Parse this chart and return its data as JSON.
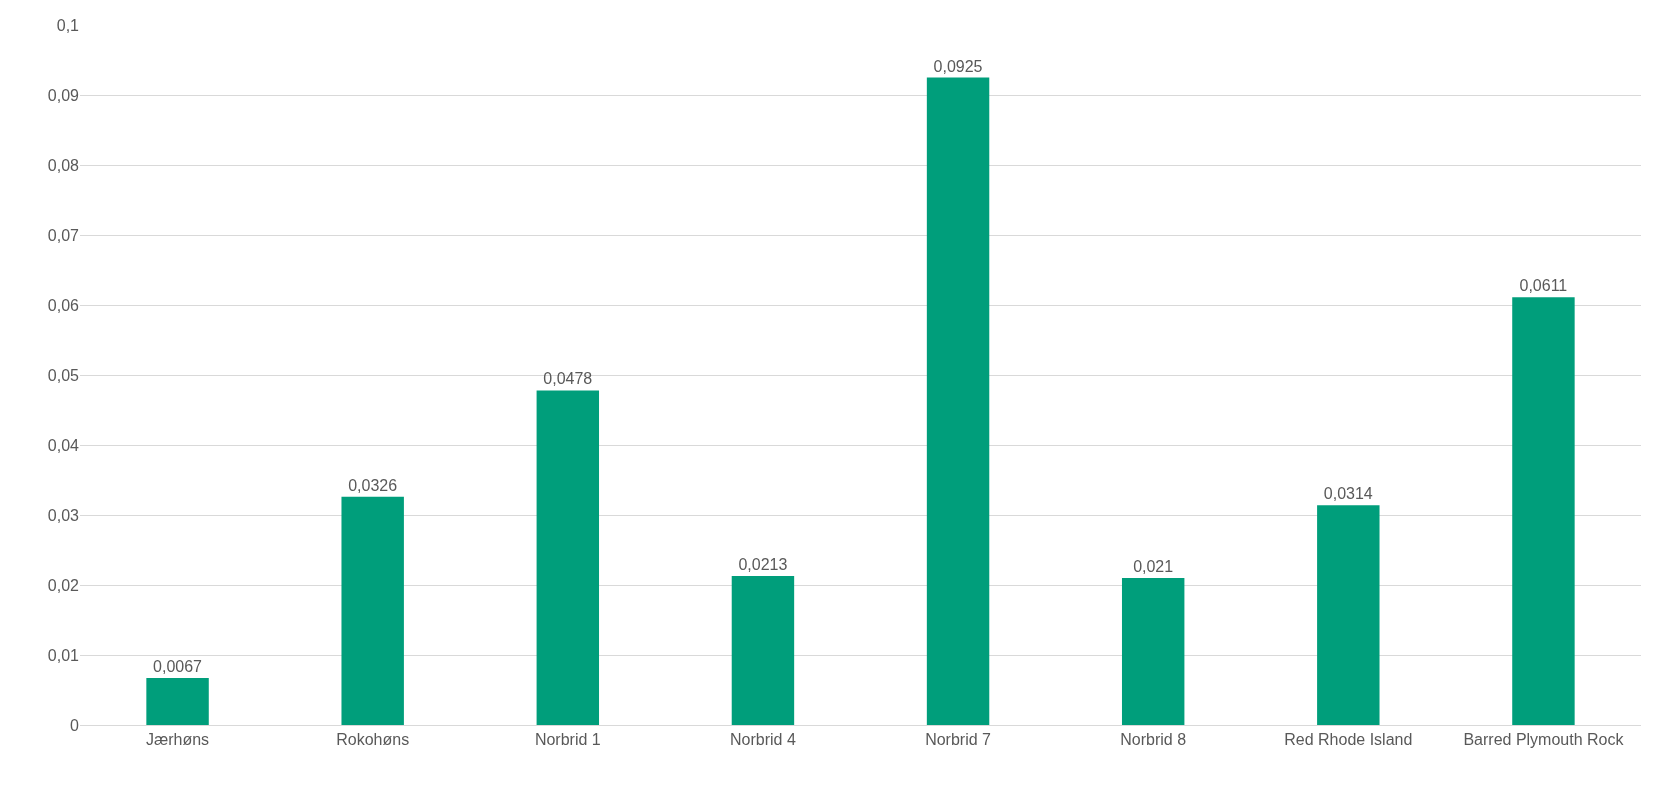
{
  "chart_data": {
    "type": "bar",
    "categories": [
      "Jærhøns",
      "Rokohøns",
      "Norbrid 1",
      "Norbrid 4",
      "Norbrid 7",
      "Norbrid 8",
      "Red Rhode Island",
      "Barred Plymouth Rock"
    ],
    "values": [
      0.0067,
      0.0326,
      0.0478,
      0.0213,
      0.0925,
      0.021,
      0.0314,
      0.0611
    ],
    "value_labels": [
      "0,0067",
      "0,0326",
      "0,0478",
      "0,0213",
      "0,0925",
      "0,021",
      "0,0314",
      "0,0611"
    ],
    "color": "#009e7b",
    "ylim": [
      0,
      0.1
    ],
    "yticks": [
      {
        "value": 0,
        "label": "0"
      },
      {
        "value": 0.01,
        "label": "0,01"
      },
      {
        "value": 0.02,
        "label": "0,02"
      },
      {
        "value": 0.03,
        "label": "0,03"
      },
      {
        "value": 0.04,
        "label": "0,04"
      },
      {
        "value": 0.05,
        "label": "0,05"
      },
      {
        "value": 0.06,
        "label": "0,06"
      },
      {
        "value": 0.07,
        "label": "0,07"
      },
      {
        "value": 0.08,
        "label": "0,08"
      },
      {
        "value": 0.09,
        "label": "0,09"
      },
      {
        "value": 0.1,
        "label": "0,1"
      }
    ],
    "grid": "y"
  }
}
